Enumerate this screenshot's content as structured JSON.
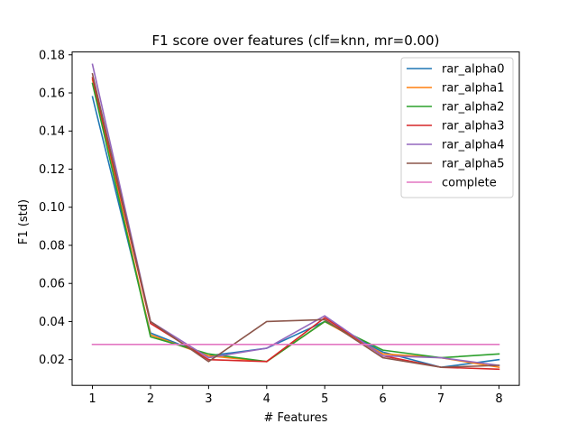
{
  "chart_data": {
    "type": "line",
    "title": "F1 score over features (clf=knn, mr=0.00)",
    "xlabel": "# Features",
    "ylabel": "F1 (std)",
    "x": [
      1,
      2,
      3,
      4,
      5,
      6,
      7,
      8
    ],
    "xticks": [
      "1",
      "2",
      "3",
      "4",
      "5",
      "6",
      "7",
      "8"
    ],
    "yticks": [
      "0.02",
      "0.04",
      "0.06",
      "0.08",
      "0.10",
      "0.12",
      "0.14",
      "0.16",
      "0.18"
    ],
    "ylim": [
      0.0065,
      0.1815
    ],
    "xlim": [
      0.65,
      8.35
    ],
    "grid": false,
    "legend_position": "top-right",
    "series": [
      {
        "name": "rar_alpha0",
        "color": "#1f77b4",
        "values": [
          0.158,
          0.034,
          0.022,
          0.026,
          0.04,
          0.024,
          0.016,
          0.02
        ]
      },
      {
        "name": "rar_alpha1",
        "color": "#ff7f0e",
        "values": [
          0.167,
          0.033,
          0.022,
          0.019,
          0.04,
          0.023,
          0.021,
          0.016
        ]
      },
      {
        "name": "rar_alpha2",
        "color": "#2ca02c",
        "values": [
          0.165,
          0.032,
          0.023,
          0.019,
          0.04,
          0.025,
          0.021,
          0.023
        ]
      },
      {
        "name": "rar_alpha3",
        "color": "#d62728",
        "values": [
          0.168,
          0.039,
          0.02,
          0.019,
          0.042,
          0.022,
          0.016,
          0.015
        ]
      },
      {
        "name": "rar_alpha4",
        "color": "#9467bd",
        "values": [
          0.175,
          0.04,
          0.021,
          0.026,
          0.043,
          0.022,
          0.021,
          0.017
        ]
      },
      {
        "name": "rar_alpha5",
        "color": "#8c564b",
        "values": [
          0.17,
          0.04,
          0.019,
          0.04,
          0.041,
          0.021,
          0.016,
          0.017
        ]
      },
      {
        "name": "complete",
        "color": "#e377c2",
        "values": [
          0.028,
          0.028,
          0.028,
          0.028,
          0.028,
          0.028,
          0.028,
          0.028
        ]
      }
    ]
  }
}
